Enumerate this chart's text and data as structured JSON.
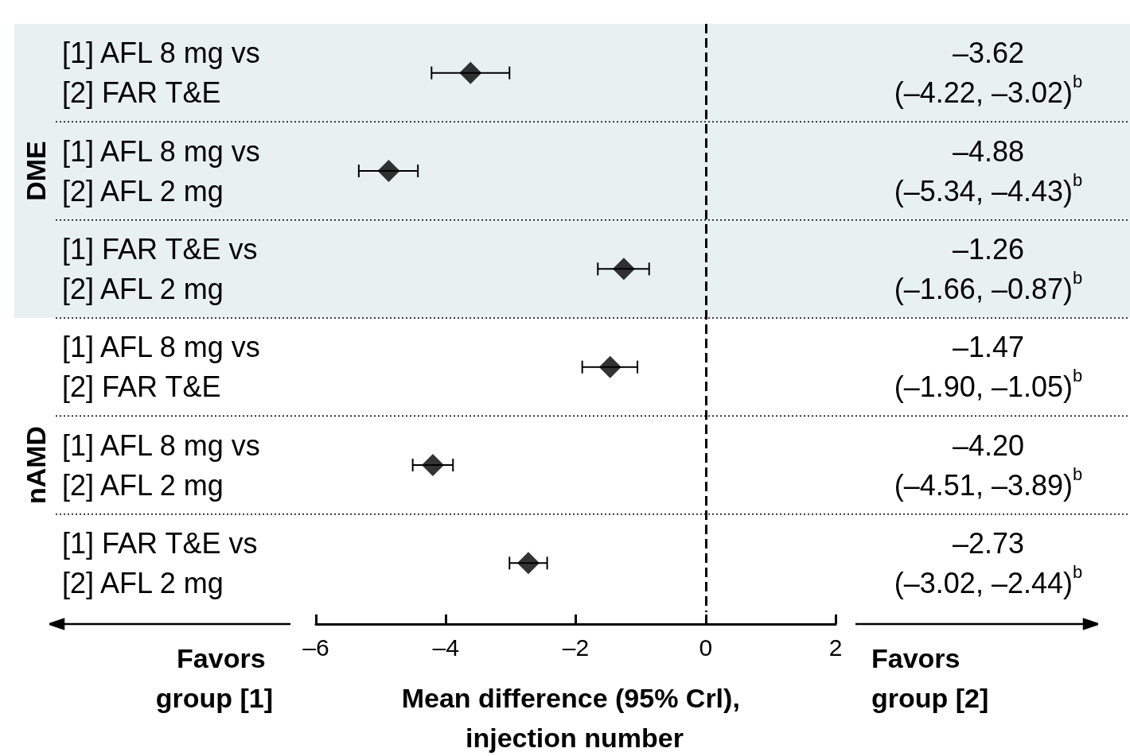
{
  "chart_data": {
    "type": "scatter",
    "orientation": "horizontal",
    "xlabel": "Mean difference (95% Crl), injection number",
    "categories": [
      "[1] AFL 8 mg vs\n[2] FAR T&E",
      "[1] AFL 8 mg vs\n[2] AFL 2 mg",
      "[1] FAR T&E vs\n[2] AFL 2 mg",
      "[1] AFL 8 mg vs\n[2] FAR T&E",
      "[1] AFL 8 mg vs\n[2] AFL 2 mg",
      "[1] FAR T&E vs\n[2] AFL 2 mg"
    ],
    "values": [
      -3.62,
      -4.88,
      -1.26,
      -1.47,
      -4.2,
      -2.73
    ],
    "errors": [
      [
        -4.22,
        -3.02
      ],
      [
        -5.34,
        -4.43
      ],
      [
        -1.66,
        -0.87
      ],
      [
        -1.9,
        -1.05
      ],
      [
        -4.51,
        -3.89
      ],
      [
        -3.02,
        -2.44
      ]
    ],
    "value_labels": [
      "–3.62\n(–4.22, –3.02)$^{b}$",
      "–4.88\n(–5.34, –4.43)$^{b}$",
      "–1.26\n(–1.66, –0.87)$^{b}$",
      "–1.47\n(–1.90, –1.05)$^{b}$",
      "–4.20\n(–4.51, –3.89)$^{b}$",
      "–2.73\n(–3.02, –2.44)$^{b}$"
    ],
    "color": "#000000",
    "marker": "diamond",
    "xlim": [
      -6,
      2
    ],
    "xticks": [
      {
        "value": -6,
        "label": "–6"
      },
      {
        "value": -4,
        "label": "–4"
      },
      {
        "value": -2,
        "label": "–2"
      },
      0,
      2
    ],
    "ref_lines": [
      {
        "axis": "x",
        "value": 0,
        "label": null,
        "line_style": "dashed",
        "color": "#000000"
      }
    ],
    "bands": [
      {
        "axis": "y",
        "from": "[1] AFL 8 mg vs\n[2] FAR T&E",
        "to": "[1] FAR T&E vs\n[2] AFL 2 mg",
        "label": "DME",
        "color": "#e8f0f0"
      }
    ],
    "grid": "y",
    "annotations": [
      "Favors group [1]",
      "Favors group [2]",
      "nAMD"
    ]
  }
}
